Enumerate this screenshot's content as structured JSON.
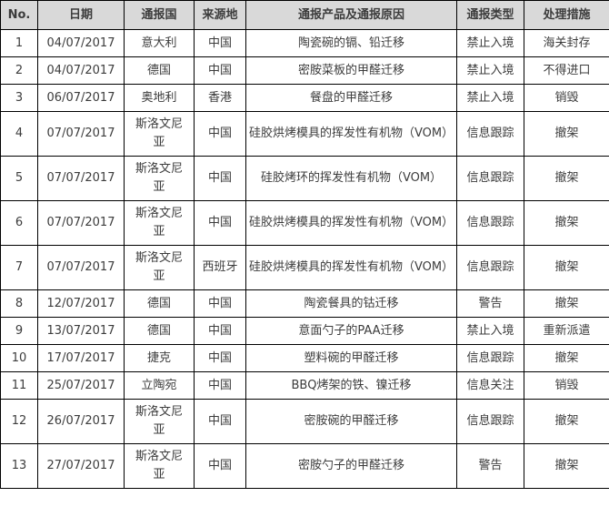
{
  "colors": {
    "header_bg": "#d9d9d9",
    "border": "#000000",
    "text": "#3c3c3c",
    "body_bg": "#ffffff"
  },
  "table": {
    "columns": [
      "No.",
      "日期",
      "通报国",
      "来源地",
      "通报产品及通报原因",
      "通报类型",
      "处理措施"
    ],
    "rows": [
      [
        "1",
        "04/07/2017",
        "意大利",
        "中国",
        "陶瓷碗的镉、铅迁移",
        "禁止入境",
        "海关封存"
      ],
      [
        "2",
        "04/07/2017",
        "德国",
        "中国",
        "密胺菜板的甲醛迁移",
        "禁止入境",
        "不得进口"
      ],
      [
        "3",
        "06/07/2017",
        "奥地利",
        "香港",
        "餐盘的甲醛迁移",
        "禁止入境",
        "销毁"
      ],
      [
        "4",
        "07/07/2017",
        "斯洛文尼亚",
        "中国",
        "硅胶烘烤模具的挥发性有机物（VOM）",
        "信息跟踪",
        "撤架"
      ],
      [
        "5",
        "07/07/2017",
        "斯洛文尼亚",
        "中国",
        "硅胶烤环的挥发性有机物（VOM）",
        "信息跟踪",
        "撤架"
      ],
      [
        "6",
        "07/07/2017",
        "斯洛文尼亚",
        "中国",
        "硅胶烘烤模具的挥发性有机物（VOM）",
        "信息跟踪",
        "撤架"
      ],
      [
        "7",
        "07/07/2017",
        "斯洛文尼亚",
        "西班牙",
        "硅胶烘烤模具的挥发性有机物（VOM）",
        "信息跟踪",
        "撤架"
      ],
      [
        "8",
        "12/07/2017",
        "德国",
        "中国",
        "陶瓷餐具的钴迁移",
        "警告",
        "撤架"
      ],
      [
        "9",
        "13/07/2017",
        "德国",
        "中国",
        "意面勺子的PAA迁移",
        "禁止入境",
        "重新派遣"
      ],
      [
        "10",
        "17/07/2017",
        "捷克",
        "中国",
        "塑料碗的甲醛迁移",
        "信息跟踪",
        "撤架"
      ],
      [
        "11",
        "25/07/2017",
        "立陶宛",
        "中国",
        "BBQ烤架的铁、镍迁移",
        "信息关注",
        "销毁"
      ],
      [
        "12",
        "26/07/2017",
        "斯洛文尼亚",
        "中国",
        "密胺碗的甲醛迁移",
        "信息跟踪",
        "撤架"
      ],
      [
        "13",
        "27/07/2017",
        "斯洛文尼亚",
        "中国",
        "密胺勺子的甲醛迁移",
        "警告",
        "撤架"
      ]
    ]
  }
}
